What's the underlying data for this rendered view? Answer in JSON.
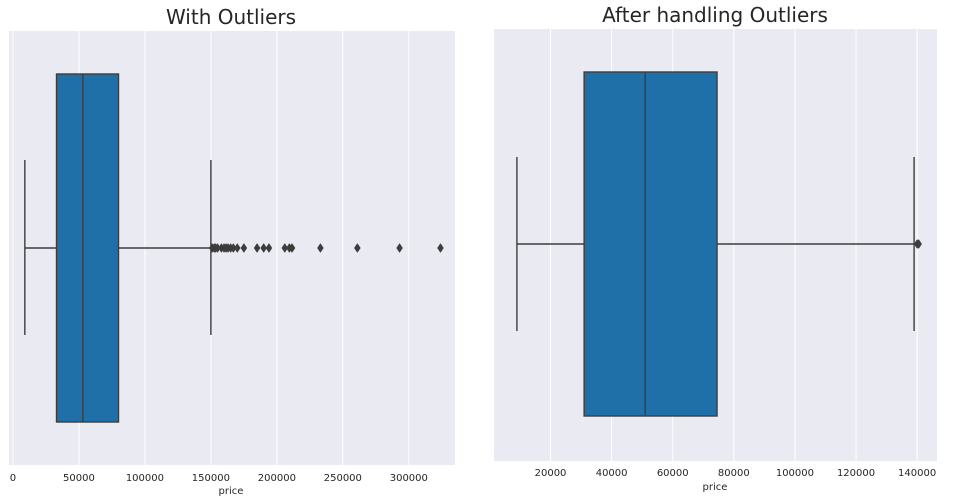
{
  "colors": {
    "background": "#eaeaf2",
    "grid": "#ffffff",
    "box_fill": "#1f6fa8",
    "line": "#3d3d3d",
    "text": "#262626"
  },
  "chart_data": [
    {
      "type": "boxplot",
      "title": "With Outliers",
      "xlabel": "price",
      "xlim": [
        -3000,
        335000
      ],
      "xticks": [
        0,
        50000,
        100000,
        150000,
        200000,
        250000,
        300000
      ],
      "xtick_labels": [
        "0",
        "50000",
        "100000",
        "150000",
        "200000",
        "250000",
        "300000"
      ],
      "grid": true,
      "whisker_low": 9000,
      "q1": 33000,
      "median": 53000,
      "q3": 80000,
      "whisker_high": 150000,
      "outliers": [
        151000,
        152500,
        153500,
        155000,
        158000,
        160000,
        161500,
        163000,
        165000,
        167000,
        170000,
        175000,
        185000,
        190000,
        194000,
        206000,
        209500,
        211500,
        233000,
        261000,
        293000,
        324000
      ]
    },
    {
      "type": "boxplot",
      "title": "After handling Outliers",
      "xlabel": "price",
      "xlim": [
        1500,
        146500
      ],
      "xticks": [
        20000,
        40000,
        60000,
        80000,
        100000,
        120000,
        140000
      ],
      "xtick_labels": [
        "20000",
        "40000",
        "60000",
        "80000",
        "100000",
        "120000",
        "140000"
      ],
      "grid": true,
      "whisker_low": 9000,
      "q1": 31000,
      "median": 51000,
      "q3": 74500,
      "whisker_high": 139000,
      "outliers": [
        140000,
        140500
      ]
    }
  ]
}
